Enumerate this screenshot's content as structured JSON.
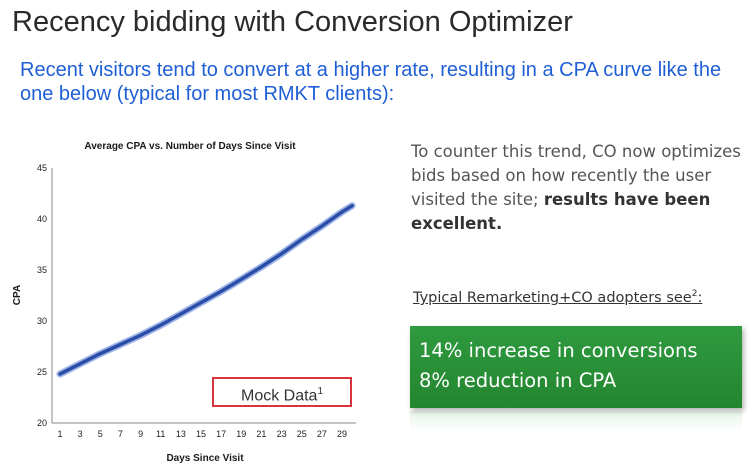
{
  "slide": {
    "title": "Recency bidding with Conversion Optimizer",
    "subtitle": "Recent visitors tend to convert at a higher rate, resulting in a CPA curve like the one below (typical for most RMKT clients):",
    "counter_text": "To counter this trend, CO now optimizes bids based on how recently the user visited the site;",
    "counter_bold": "results have been excellent.",
    "adopters_label": "Typical Remarketing+CO adopters see",
    "adopters_footnote": "2",
    "adopters_suffix": ":",
    "results": [
      "14% increase in conversions",
      "8% reduction in CPA"
    ],
    "mock_label": "Mock Data",
    "mock_footnote": "1",
    "colors": {
      "subtitle": "#1f5fd6",
      "results_bg": "#2a9139",
      "line": "#2a4ea8",
      "mock_border": "#d9343b"
    }
  },
  "chart_data": {
    "type": "line",
    "title": "Average CPA vs. Number of Days Since Visit",
    "xlabel": "Days Since Visit",
    "ylabel": "CPA",
    "xlim": [
      1,
      30
    ],
    "ylim": [
      20,
      45
    ],
    "xticks": [
      1,
      3,
      5,
      7,
      9,
      11,
      13,
      15,
      17,
      19,
      21,
      23,
      25,
      27,
      29
    ],
    "yticks": [
      20,
      25,
      30,
      35,
      40,
      45
    ],
    "grid": false,
    "legend": "none",
    "series": [
      {
        "x": [
          1,
          3,
          5,
          7,
          9,
          11,
          13,
          15,
          17,
          19,
          21,
          23,
          25,
          27,
          29,
          30
        ],
        "y": [
          24.8,
          25.8,
          26.8,
          27.7,
          28.6,
          29.6,
          30.7,
          31.8,
          32.9,
          34.1,
          35.3,
          36.6,
          38.0,
          39.3,
          40.7,
          41.3
        ]
      }
    ]
  }
}
